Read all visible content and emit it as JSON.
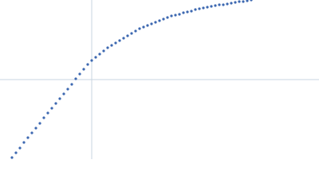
{
  "chart_data": {
    "type": "scatter",
    "color": "#3d68b1",
    "xlim": [
      -115,
      285
    ],
    "ylim": [
      -100,
      100
    ],
    "x": [
      -100,
      -95,
      -90,
      -85,
      -80,
      -75,
      -70,
      -65,
      -60,
      -55,
      -50,
      -45,
      -40,
      -35,
      -30,
      -25,
      -20,
      -15,
      -10,
      -5,
      0,
      5,
      10,
      15,
      20,
      25,
      30,
      35,
      40,
      45,
      50,
      55,
      60,
      65,
      70,
      75,
      80,
      85,
      90,
      95,
      100,
      105,
      110,
      115,
      120,
      125,
      130,
      135,
      140,
      145,
      150,
      155,
      160,
      165,
      170,
      175,
      180,
      185,
      190,
      195,
      200
    ],
    "y": [
      -98,
      -92,
      -86,
      -79,
      -73,
      -67,
      -61,
      -55,
      -48,
      -42,
      -36,
      -30,
      -24,
      -18,
      -12,
      -6,
      1,
      7,
      13,
      19,
      24,
      28,
      32,
      36,
      40,
      43,
      46,
      49,
      52,
      55,
      58,
      61,
      64,
      66,
      68,
      70,
      72,
      74,
      76,
      78,
      80,
      81,
      82,
      84,
      85,
      86,
      88,
      89,
      90,
      91,
      92,
      93,
      94,
      94,
      95,
      96,
      97,
      98,
      98,
      99,
      100
    ]
  }
}
